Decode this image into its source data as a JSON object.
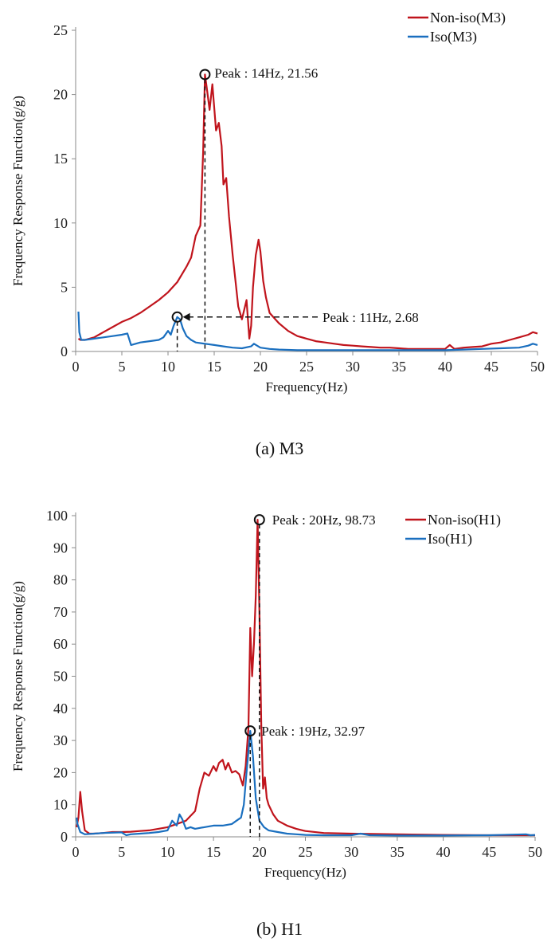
{
  "colors": {
    "non_iso": "#c0141c",
    "iso": "#1a6fbf",
    "axis": "#8a8a8a",
    "text": "#111111"
  },
  "chart_data": [
    {
      "type": "line",
      "caption": "(a) M3",
      "xlabel": "Frequency(Hz)",
      "ylabel": "Frequency Response Function(g/g)",
      "xlim": [
        0,
        50
      ],
      "ylim": [
        0,
        25
      ],
      "xticks": [
        0,
        5,
        10,
        15,
        20,
        25,
        30,
        35,
        40,
        45,
        50
      ],
      "yticks": [
        0,
        5,
        10,
        15,
        20,
        25
      ],
      "legend_position": "top-right",
      "legend": [
        "Non-iso(M3)",
        "Iso(M3)"
      ],
      "annotations": [
        {
          "text": "Peak : 14Hz, 21.56",
          "x": 14,
          "y": 21.56,
          "series": "Non-iso(M3)",
          "style": "vertical-drop"
        },
        {
          "text": "Peak : 11Hz, 2.68",
          "x": 11,
          "y": 2.68,
          "series": "Iso(M3)",
          "style": "arrow-left"
        }
      ],
      "series": [
        {
          "name": "Non-iso(M3)",
          "x": [
            0.3,
            0.5,
            1,
            2,
            3,
            4,
            5,
            6,
            7,
            8,
            9,
            10,
            11,
            11.5,
            12,
            12.5,
            13,
            13.5,
            13.8,
            14,
            14.2,
            14.5,
            14.8,
            15,
            15.2,
            15.5,
            15.8,
            16,
            16.3,
            16.6,
            17,
            17.3,
            17.6,
            18,
            18.5,
            18.8,
            19,
            19.2,
            19.5,
            19.8,
            20,
            20.3,
            20.6,
            21,
            21.5,
            22,
            23,
            24,
            25,
            26,
            27,
            28,
            29,
            30,
            31,
            32,
            33,
            34,
            35,
            36,
            37,
            38,
            39,
            40,
            40.5,
            41,
            42,
            43,
            44,
            45,
            46,
            47,
            48,
            49,
            49.5,
            50
          ],
          "y": [
            1.0,
            0.9,
            0.9,
            1.1,
            1.5,
            1.9,
            2.3,
            2.6,
            3.0,
            3.5,
            4.0,
            4.6,
            5.4,
            6.0,
            6.6,
            7.3,
            9.0,
            9.8,
            15.5,
            21.56,
            20.5,
            18.8,
            20.8,
            19.0,
            17.2,
            17.8,
            16.0,
            13.0,
            13.5,
            10.5,
            7.5,
            5.5,
            3.5,
            2.5,
            4.0,
            1.0,
            2.0,
            5.0,
            7.5,
            8.7,
            7.8,
            5.5,
            4.2,
            3.0,
            2.6,
            2.2,
            1.6,
            1.2,
            1.0,
            0.8,
            0.7,
            0.6,
            0.5,
            0.45,
            0.4,
            0.35,
            0.3,
            0.3,
            0.25,
            0.2,
            0.2,
            0.2,
            0.2,
            0.2,
            0.5,
            0.2,
            0.3,
            0.35,
            0.4,
            0.6,
            0.7,
            0.9,
            1.1,
            1.3,
            1.5,
            1.4
          ]
        },
        {
          "name": "Iso(M3)",
          "x": [
            0.3,
            0.4,
            0.6,
            1,
            2,
            3,
            4,
            5,
            5.6,
            6,
            6.5,
            7,
            8,
            9,
            9.5,
            10,
            10.3,
            10.6,
            11,
            11.3,
            11.6,
            12,
            12.5,
            13,
            14,
            15,
            16,
            17,
            18,
            19,
            19.3,
            20,
            21,
            22,
            24,
            26,
            28,
            30,
            32,
            34,
            36,
            38,
            40,
            42,
            44,
            46,
            48,
            49,
            49.5,
            50
          ],
          "y": [
            3.1,
            1.5,
            0.9,
            0.9,
            1.0,
            1.1,
            1.2,
            1.3,
            1.4,
            0.5,
            0.6,
            0.7,
            0.8,
            0.9,
            1.1,
            1.6,
            1.3,
            2.0,
            2.68,
            2.5,
            1.8,
            1.2,
            0.9,
            0.7,
            0.6,
            0.5,
            0.4,
            0.3,
            0.25,
            0.4,
            0.6,
            0.3,
            0.2,
            0.15,
            0.1,
            0.1,
            0.1,
            0.1,
            0.1,
            0.1,
            0.1,
            0.1,
            0.1,
            0.15,
            0.2,
            0.25,
            0.3,
            0.45,
            0.6,
            0.5
          ]
        }
      ]
    },
    {
      "type": "line",
      "caption": "(b) H1",
      "xlabel": "Frequency(Hz)",
      "ylabel": "Frequency Response Function(g/g)",
      "xlim": [
        0,
        50
      ],
      "ylim": [
        0,
        100
      ],
      "xticks": [
        0,
        5,
        10,
        15,
        20,
        25,
        30,
        35,
        40,
        45,
        50
      ],
      "yticks": [
        0,
        10,
        20,
        30,
        40,
        50,
        60,
        70,
        80,
        90,
        100
      ],
      "legend_position": "top-right",
      "legend": [
        "Non-iso(H1)",
        "Iso(H1)"
      ],
      "annotations": [
        {
          "text": "Peak : 20Hz, 98.73",
          "x": 20,
          "y": 98.73,
          "series": "Non-iso(H1)",
          "style": "vertical-drop"
        },
        {
          "text": "Peak : 19Hz, 32.97",
          "x": 19,
          "y": 32.97,
          "series": "Iso(H1)",
          "style": "vertical-drop"
        }
      ],
      "series": [
        {
          "name": "Non-iso(H1)",
          "x": [
            0.1,
            0.3,
            0.5,
            0.7,
            1,
            1.5,
            2,
            3,
            4,
            5,
            6,
            7,
            8,
            9,
            10,
            11,
            12,
            13,
            13.5,
            14,
            14.5,
            15,
            15.3,
            15.6,
            16,
            16.3,
            16.6,
            17,
            17.4,
            17.8,
            18.2,
            18.5,
            18.8,
            19,
            19.2,
            19.4,
            19.6,
            19.8,
            20,
            20.2,
            20.4,
            20.6,
            20.8,
            21,
            21.5,
            22,
            23,
            24,
            25,
            27,
            30,
            35,
            40,
            45,
            50
          ],
          "y": [
            3,
            6,
            14,
            8,
            2,
            1,
            1,
            1.2,
            1.5,
            1.5,
            1.6,
            1.8,
            2.0,
            2.5,
            3.0,
            4.0,
            5.0,
            8.0,
            15.0,
            20.0,
            19.0,
            22.0,
            20.5,
            23.0,
            24.0,
            21.0,
            23.0,
            20.0,
            20.5,
            19.5,
            16.0,
            22.0,
            34.0,
            65.0,
            50.0,
            60.0,
            75.0,
            98.73,
            70.0,
            35.0,
            15.0,
            18.5,
            12.0,
            10.0,
            7.0,
            5.0,
            3.5,
            2.5,
            1.8,
            1.2,
            1.0,
            0.8,
            0.6,
            0.5,
            0.5
          ]
        },
        {
          "name": "Iso(H1)",
          "x": [
            0.1,
            0.2,
            0.5,
            1,
            2,
            3,
            4,
            5,
            5.5,
            6,
            7,
            8,
            9,
            10,
            10.5,
            11,
            11.3,
            11.6,
            12,
            12.5,
            13,
            14,
            15,
            16,
            17,
            17.5,
            18,
            18.3,
            18.6,
            19,
            19.3,
            19.6,
            20,
            20.5,
            21,
            22,
            23,
            24,
            25,
            27,
            30,
            31,
            32,
            35,
            40,
            45,
            49,
            49.5,
            50
          ],
          "y": [
            6,
            4,
            1.5,
            0.8,
            1.0,
            1.2,
            1.3,
            1.4,
            0.5,
            0.8,
            1.0,
            1.2,
            1.5,
            2.0,
            5.0,
            3.5,
            7.0,
            5.5,
            2.5,
            3.0,
            2.5,
            3.0,
            3.5,
            3.5,
            4.0,
            5.0,
            6.0,
            10.0,
            20.0,
            32.97,
            25.0,
            12.0,
            5.0,
            3.0,
            2.0,
            1.5,
            1.0,
            0.8,
            0.6,
            0.5,
            0.5,
            1.0,
            0.5,
            0.4,
            0.4,
            0.5,
            0.8,
            0.5,
            0.6
          ]
        }
      ]
    }
  ]
}
